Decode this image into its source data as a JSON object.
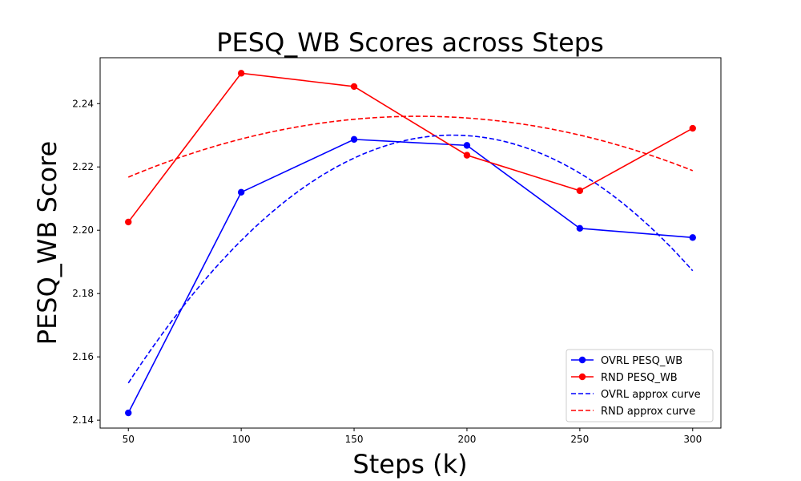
{
  "chart_data": {
    "type": "line",
    "title": "PESQ_WB Scores across Steps",
    "xlabel": "Steps (k)",
    "ylabel": "PESQ_WB Score",
    "x": [
      50,
      100,
      150,
      200,
      250,
      300
    ],
    "xlim": [
      37.5,
      312.5
    ],
    "ylim": [
      2.1375,
      2.2545
    ],
    "xticks": [
      "50",
      "100",
      "150",
      "200",
      "250",
      "300"
    ],
    "yticks": [
      "2.14",
      "2.16",
      "2.18",
      "2.20",
      "2.22",
      "2.24"
    ],
    "grid": false,
    "legend_position": "lower-right",
    "series": [
      {
        "name": "OVRL PESQ_WB",
        "color": "#0000ff",
        "style": "solid",
        "marker": "circle",
        "values": [
          2.1423,
          2.212,
          2.2287,
          2.2268,
          2.2006,
          2.1977
        ]
      },
      {
        "name": "RND PESQ_WB",
        "color": "#ff0000",
        "style": "solid",
        "marker": "circle",
        "values": [
          2.2026,
          2.2496,
          2.2454,
          2.2237,
          2.2125,
          2.2322
        ]
      },
      {
        "name": "OVRL approx curve",
        "color": "#0000ff",
        "style": "dashed",
        "marker": "none",
        "values": [
          2.1521,
          2.1961,
          2.2228,
          2.2302,
          2.2182,
          2.187
        ]
      },
      {
        "name": "RND approx curve",
        "color": "#ff0000",
        "style": "dashed",
        "marker": "none",
        "values": [
          2.2168,
          2.2288,
          2.235,
          2.2355,
          2.2301,
          2.2188
        ]
      }
    ]
  }
}
